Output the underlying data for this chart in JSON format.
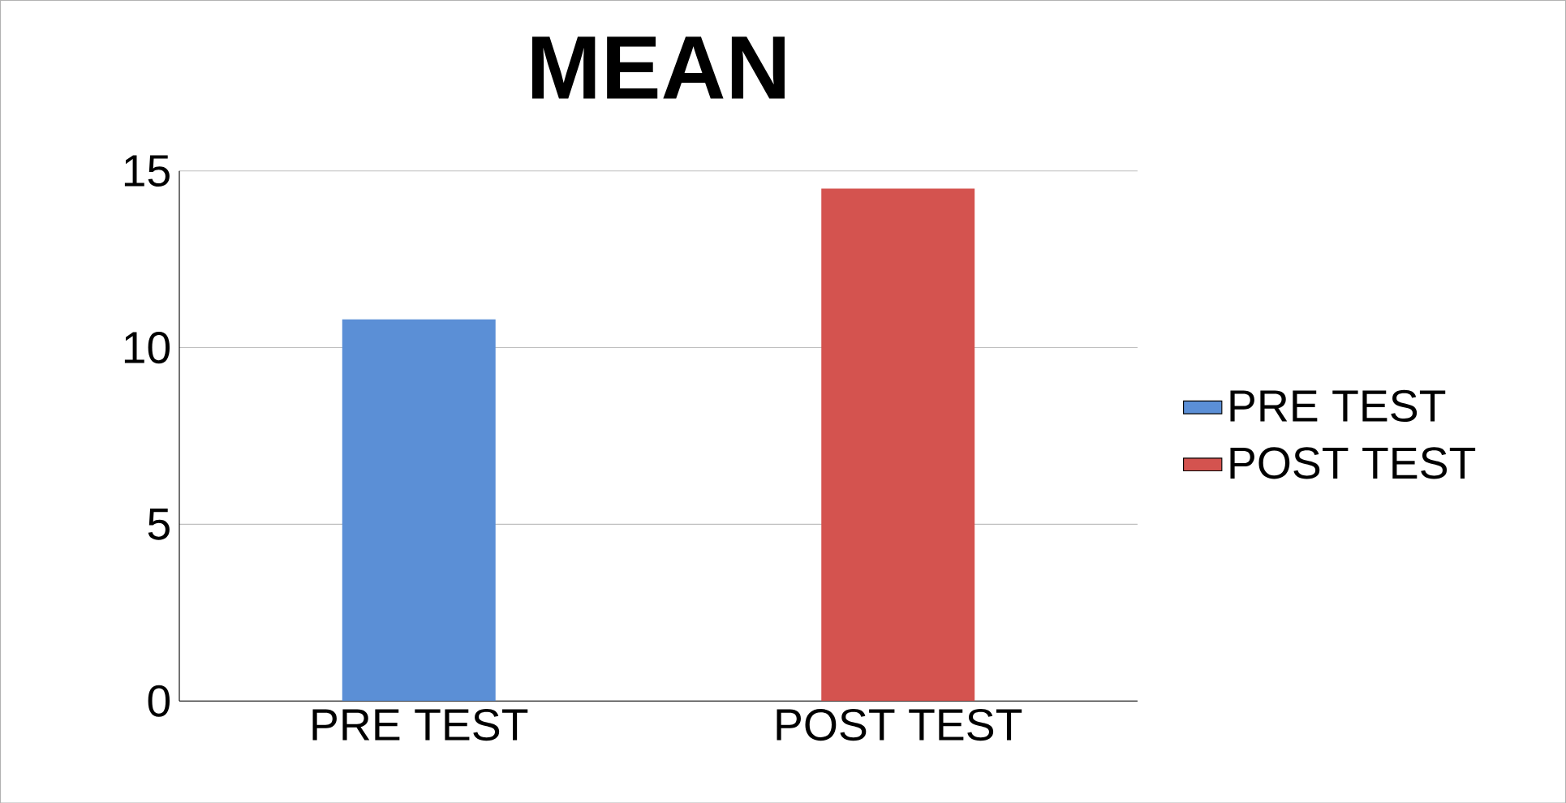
{
  "chart_data": {
    "type": "bar",
    "title": "MEAN",
    "categories": [
      "PRE TEST",
      "POST TEST"
    ],
    "series": [
      {
        "name": "PRE TEST",
        "color": "#5b8fd6",
        "values": [
          10.8,
          null
        ]
      },
      {
        "name": "POST TEST",
        "color": "#d4534f",
        "values": [
          null,
          14.5
        ]
      }
    ],
    "ylim": [
      0,
      15
    ],
    "yticks": [
      0,
      5,
      10,
      15
    ],
    "grid": "y",
    "legend": "right"
  }
}
